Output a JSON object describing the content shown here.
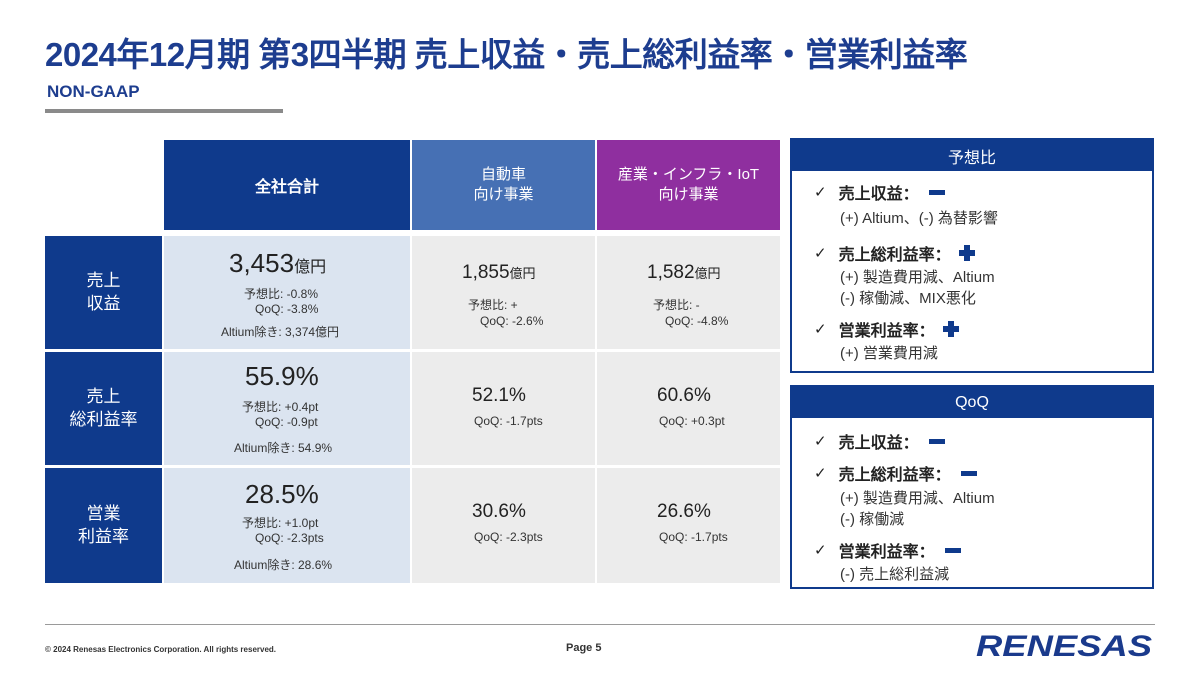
{
  "title": "2024年12月期 第3四半期 売上収益・売上総利益率・営業利益率",
  "subtitle": "NON-GAAP",
  "headers": {
    "total": "全社合計",
    "auto_line1": "自動車",
    "auto_line2": "向け事業",
    "iiot_line1": "産業・インフラ・IoT",
    "iiot_line2": "向け事業"
  },
  "rows": {
    "revenue_label": [
      "売上",
      "収益"
    ],
    "gross_label": [
      "売上",
      "総利益率"
    ],
    "op_label": [
      "営業",
      "利益率"
    ]
  },
  "revenue": {
    "total_value": "3,453",
    "total_unit": "億円",
    "total_forecast": "予想比: -0.8%",
    "total_qoq": "QoQ:  -3.8%",
    "total_ex_altium": "Altium除き: 3,374億円",
    "auto_value": "1,855",
    "auto_unit": "億円",
    "auto_forecast": "予想比: +",
    "auto_qoq": "QoQ: -2.6%",
    "iiot_value": "1,582",
    "iiot_unit": "億円",
    "iiot_forecast": "予想比: -",
    "iiot_qoq": "QoQ: -4.8%"
  },
  "gross": {
    "total_value": "55.9%",
    "total_forecast": "予想比: +0.4pt",
    "total_qoq": "QoQ:  -0.9pt",
    "total_ex_altium": "Altium除き: 54.9%",
    "auto_value": "52.1%",
    "auto_qoq": "QoQ: -1.7pts",
    "iiot_value": "60.6%",
    "iiot_qoq": "QoQ: +0.3pt"
  },
  "op": {
    "total_value": "28.5%",
    "total_forecast": "予想比: +1.0pt",
    "total_qoq": "QoQ:  -2.3pts",
    "total_ex_altium": "Altium除き: 28.6%",
    "auto_value": "30.6%",
    "auto_qoq": "QoQ: -2.3pts",
    "iiot_value": "26.6%",
    "iiot_qoq": "QoQ: -1.7pts"
  },
  "forecast_box": {
    "title": "予想比",
    "check": "✓",
    "item1": "売上収益：",
    "item1_sign": "minus",
    "item1_note": "(+) Altium、(-) 為替影響",
    "item2": "売上総利益率：",
    "item2_sign": "plus",
    "item2_note1": "(+) 製造費用減、Altium",
    "item2_note2": "(-) 稼働減、MIX悪化",
    "item3": "営業利益率：",
    "item3_sign": "plus",
    "item3_note": "(+) 営業費用減"
  },
  "qoq_box": {
    "title": "QoQ",
    "check": "✓",
    "item1": "売上収益：",
    "item1_sign": "minus",
    "item2": "売上総利益率：",
    "item2_sign": "minus",
    "item2_note1": "(+) 製造費用減、Altium",
    "item2_note2": "(-) 稼働減",
    "item3": "営業利益率：",
    "item3_sign": "minus",
    "item3_note": "(-) 売上総利益減"
  },
  "footer": {
    "copyright": "© 2024 Renesas Electronics Corporation. All rights reserved.",
    "page": "Page 5",
    "logo_text": "RENESAS"
  },
  "colors": {
    "navy": "#0f3a8c",
    "auto_blue": "#4670b4",
    "iiot_purple": "#8f2f9f",
    "total_bg": "#dbe4f0",
    "segment_bg": "#ececec"
  }
}
